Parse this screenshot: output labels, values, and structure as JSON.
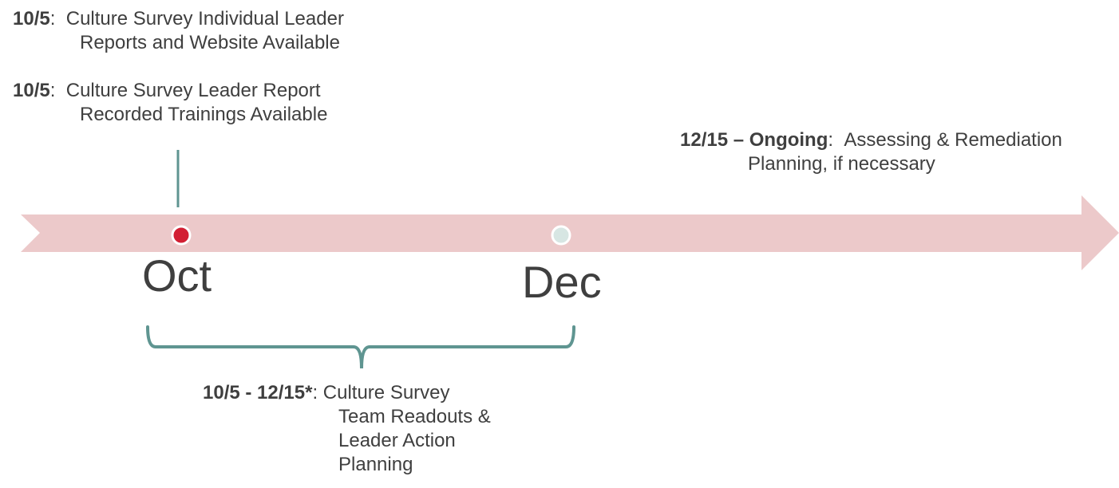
{
  "colors": {
    "arrow": "#ecc9ca",
    "teal": "#5f9591",
    "marker_oct": "#d21f33",
    "marker_dec": "#d7e6e3",
    "text": "#3f3f3f"
  },
  "months": {
    "oct": "Oct",
    "dec": "Dec"
  },
  "events": {
    "e1": {
      "date": "10/5",
      "sep": ":",
      "line1": "Culture Survey Individual Leader",
      "line2": "Reports and Website Available"
    },
    "e2": {
      "date": "10/5",
      "sep": ":",
      "line1": "Culture Survey Leader Report",
      "line2": "Recorded Trainings Available"
    },
    "e3": {
      "date": "12/15 – Ongoing",
      "sep": ":",
      "line1": "Assessing & Remediation",
      "line2": "Planning, if necessary"
    },
    "e4": {
      "date": "10/5 - 12/15*",
      "sep": ":",
      "line1": "Culture Survey",
      "line2": "Team Readouts &",
      "line3": "Leader Action",
      "line4": "Planning"
    }
  }
}
